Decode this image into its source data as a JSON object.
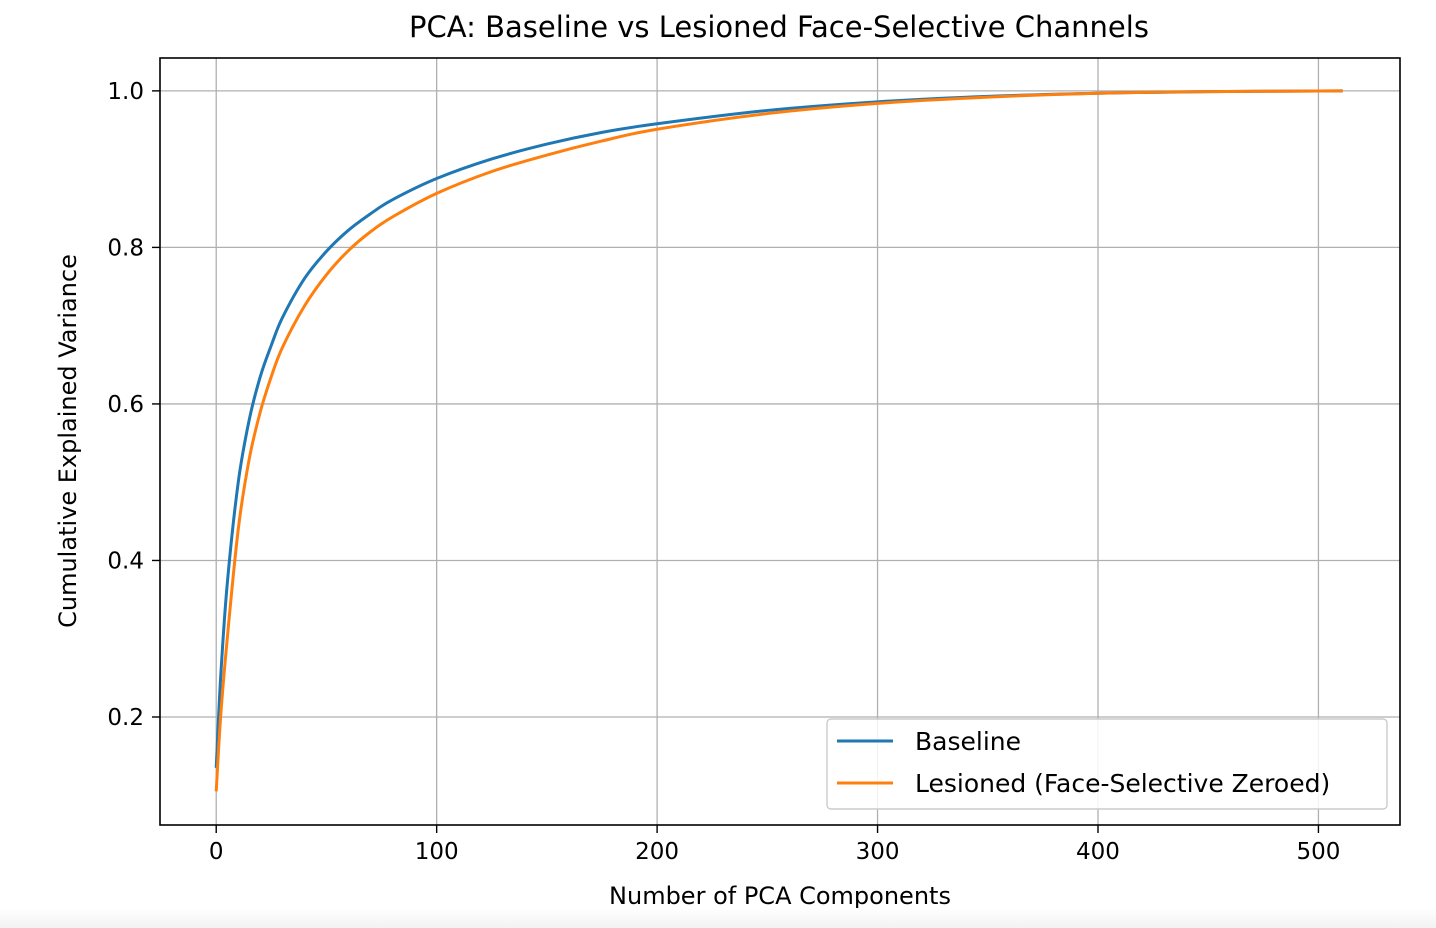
{
  "chart_data": {
    "type": "line",
    "title": "PCA: Baseline vs Lesioned Face-Selective Channels",
    "xlabel": "Number of PCA Components",
    "ylabel": "Cumulative Explained Variance",
    "xlim": [
      -25.5,
      537
    ],
    "ylim": [
      0.062,
      1.042
    ],
    "xticks": [
      0,
      100,
      200,
      300,
      400,
      500
    ],
    "xtick_labels": [
      "0",
      "100",
      "200",
      "300",
      "400",
      "500"
    ],
    "yticks": [
      0.2,
      0.4,
      0.6,
      0.8,
      1.0
    ],
    "ytick_labels": [
      "0.2",
      "0.4",
      "0.6",
      "0.8",
      "1.0"
    ],
    "grid": true,
    "legend_position": "lower right",
    "x": [
      0,
      2,
      5,
      10,
      15,
      20,
      25,
      30,
      40,
      50,
      60,
      70,
      80,
      100,
      125,
      150,
      175,
      200,
      250,
      300,
      350,
      400,
      450,
      511
    ],
    "series": [
      {
        "name": "Baseline",
        "color": "#1f77b4",
        "values": [
          0.135,
          0.25,
          0.37,
          0.5,
          0.58,
          0.635,
          0.675,
          0.71,
          0.76,
          0.795,
          0.822,
          0.843,
          0.861,
          0.888,
          0.913,
          0.932,
          0.947,
          0.958,
          0.975,
          0.986,
          0.993,
          0.997,
          0.999,
          1.0
        ]
      },
      {
        "name": "Lesioned (Face-Selective Zeroed)",
        "color": "#ff7f0e",
        "values": [
          0.105,
          0.2,
          0.3,
          0.44,
          0.53,
          0.59,
          0.635,
          0.672,
          0.725,
          0.765,
          0.796,
          0.82,
          0.839,
          0.869,
          0.897,
          0.918,
          0.936,
          0.951,
          0.971,
          0.984,
          0.992,
          0.997,
          0.999,
          1.0
        ]
      }
    ]
  }
}
